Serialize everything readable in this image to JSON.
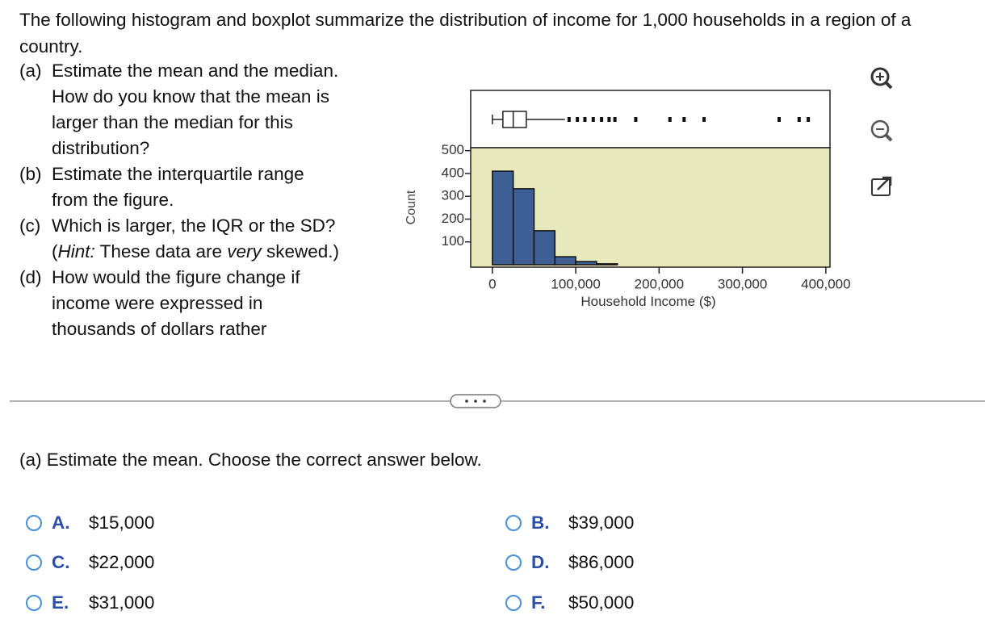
{
  "question": {
    "intro": "The following histogram and boxplot summarize the distribution of income for 1,000 households in a region of a country.",
    "parts": [
      {
        "label": "(a)",
        "text": [
          "Estimate the mean and the median. How do you know that the mean is larger than the median for this distribution?"
        ]
      },
      {
        "label": "(b)",
        "text": [
          "Estimate the interquartile range from the figure."
        ]
      },
      {
        "label": "(c)",
        "text": [
          "Which is larger, the IQR or the SD? (",
          "Hint:",
          " These data are ",
          "very",
          " skewed.)"
        ]
      },
      {
        "label": "(d)",
        "text": [
          "How would the figure change if income were expressed in thousands of dollars rather"
        ]
      }
    ]
  },
  "chart_data": {
    "type": "histogram",
    "xlabel": "Household Income ($)",
    "ylabel": "Count",
    "bins": [
      0,
      25000,
      50000,
      75000,
      100000,
      125000,
      150000
    ],
    "counts": [
      410,
      333,
      149,
      35,
      14,
      4
    ],
    "color": "#3e5f93",
    "background": "#e8e8bd",
    "xlim": [
      -26000,
      405000
    ],
    "xticks": [
      0,
      {
        "value": 100000,
        "label": "100,000"
      },
      {
        "value": 200000,
        "label": "200,000"
      },
      {
        "value": 300000,
        "label": "300,000"
      },
      {
        "value": 400000,
        "label": "400,000"
      }
    ],
    "ylim": [
      0,
      513
    ],
    "yticks": [
      100,
      200,
      300,
      400,
      500
    ],
    "box": {
      "min": 0,
      "q1": 12600,
      "median": 25000,
      "q3": 40700,
      "whisker_high": 87000,
      "outliers": [
        92000,
        102000,
        111000,
        121000,
        131000,
        140000,
        147000,
        172000,
        213000,
        230000,
        254000,
        344000,
        368000,
        379000
      ]
    }
  },
  "prompt": "(a) Estimate the mean. Choose the correct answer below.",
  "options": [
    {
      "letter": "A.",
      "text": "$15,000"
    },
    {
      "letter": "B.",
      "text": "$39,000"
    },
    {
      "letter": "C.",
      "text": "$22,000"
    },
    {
      "letter": "D.",
      "text": "$86,000"
    },
    {
      "letter": "E.",
      "text": "$31,000"
    },
    {
      "letter": "F.",
      "text": "$50,000"
    }
  ]
}
